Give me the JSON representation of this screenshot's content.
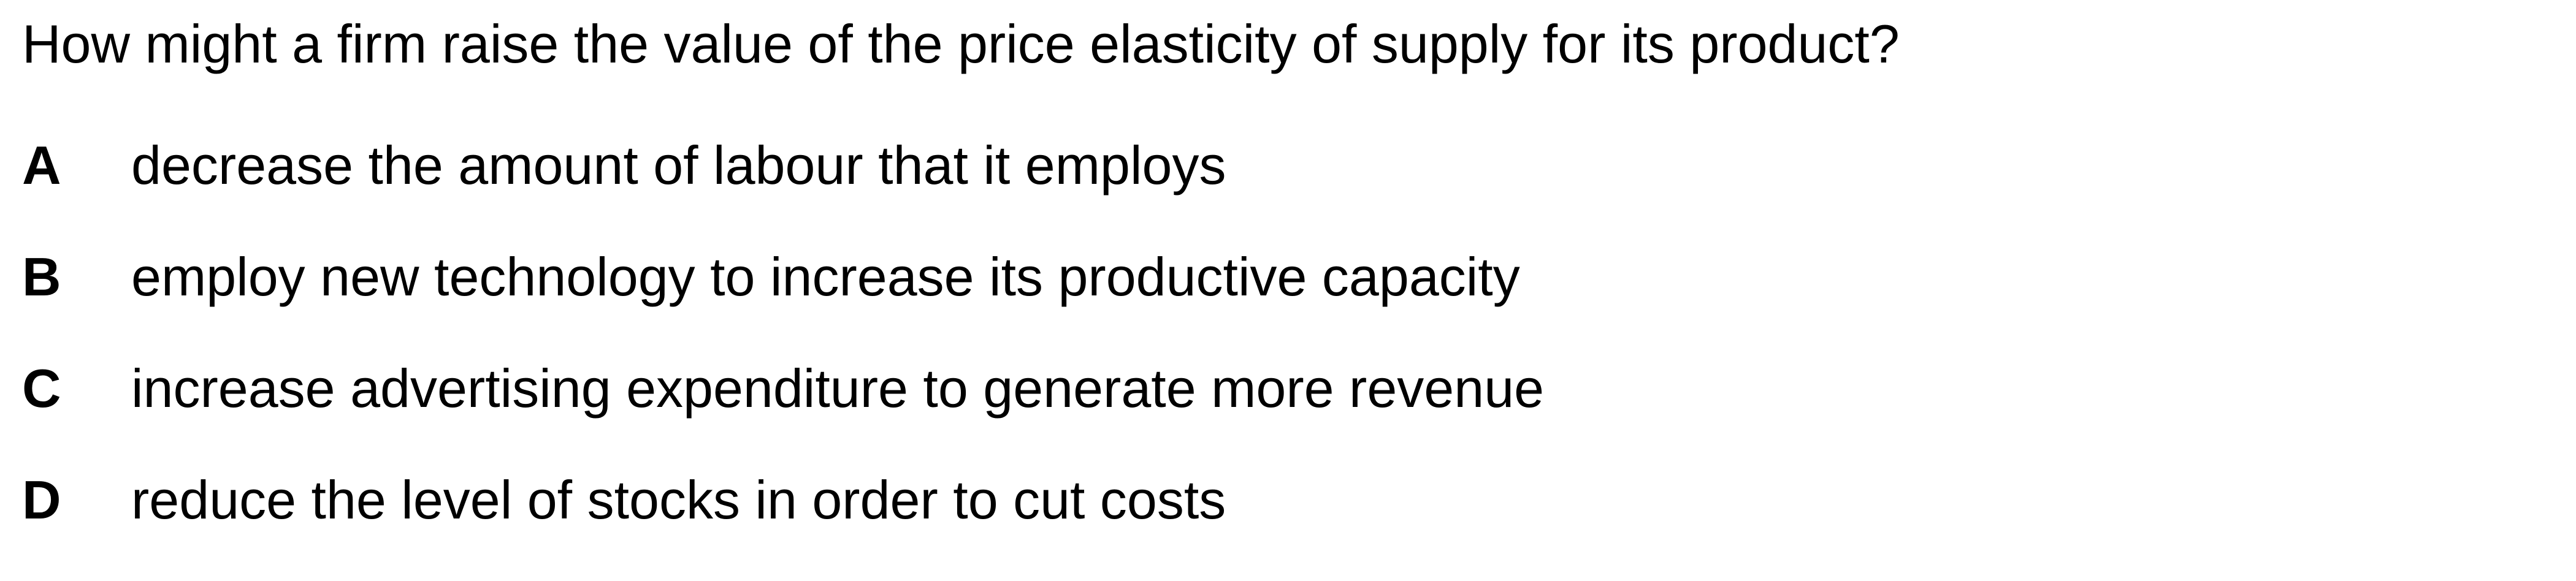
{
  "question": {
    "text": "How might a firm raise the value of the price elasticity of supply for its product?"
  },
  "options": [
    {
      "letter": "A",
      "text": "decrease the amount of labour that it employs"
    },
    {
      "letter": "B",
      "text": "employ new technology to increase its productive capacity"
    },
    {
      "letter": "C",
      "text": "increase advertising expenditure to generate more revenue"
    },
    {
      "letter": "D",
      "text": "reduce the level of stocks in order to cut costs"
    }
  ]
}
